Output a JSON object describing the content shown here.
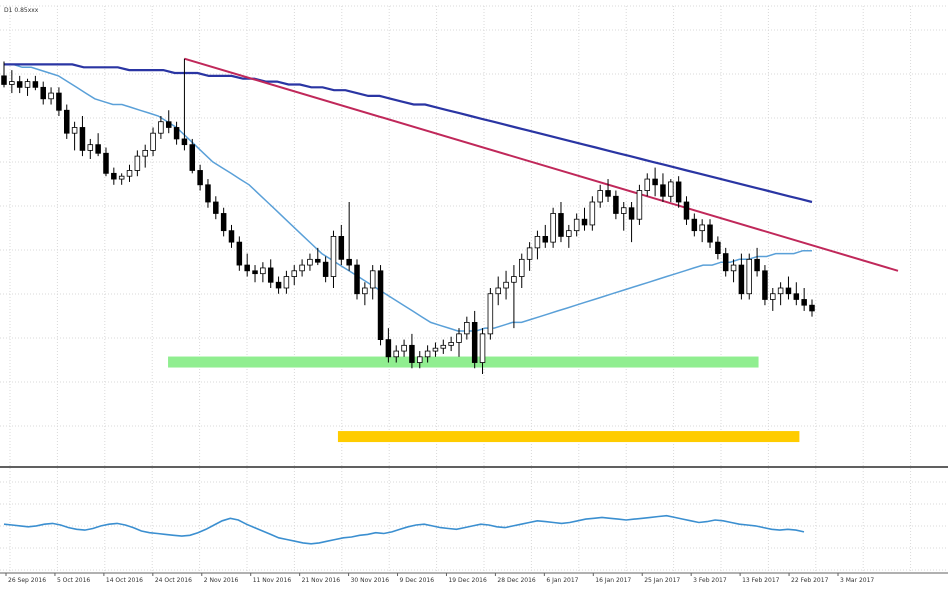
{
  "chart_data": {
    "type": "candlestick",
    "symbol_label": "D1 0.85xxx",
    "grid": true,
    "timeframe": "daily",
    "x_tick_labels": [
      "26 Sep 2016",
      "5 Oct 2016",
      "14 Oct 2016",
      "24 Oct 2016",
      "2 Nov 2016",
      "11 Nov 2016",
      "21 Nov 2016",
      "30 Nov 2016",
      "9 Dec 2016",
      "19 Dec 2016",
      "28 Dec 2016",
      "6 Jan 2017",
      "16 Jan 2017",
      "25 Jan 2017",
      "3 Feb 2017",
      "13 Feb 2017",
      "22 Feb 2017",
      "3 Mar 2017"
    ],
    "price_ylim": [
      0,
      100
    ],
    "oscillator_ylim": [
      0,
      100
    ],
    "candles": [
      {
        "o": 64,
        "h": 69,
        "l": 60,
        "c": 61
      },
      {
        "o": 61,
        "h": 66,
        "l": 58,
        "c": 62
      },
      {
        "o": 62,
        "h": 64,
        "l": 58,
        "c": 60
      },
      {
        "o": 60,
        "h": 63,
        "l": 57,
        "c": 62
      },
      {
        "o": 62,
        "h": 64,
        "l": 59,
        "c": 60
      },
      {
        "o": 60,
        "h": 62,
        "l": 54,
        "c": 56
      },
      {
        "o": 56,
        "h": 60,
        "l": 54,
        "c": 58
      },
      {
        "o": 58,
        "h": 60,
        "l": 50,
        "c": 52
      },
      {
        "o": 52,
        "h": 54,
        "l": 42,
        "c": 44
      },
      {
        "o": 44,
        "h": 48,
        "l": 38,
        "c": 46
      },
      {
        "o": 46,
        "h": 50,
        "l": 36,
        "c": 38
      },
      {
        "o": 38,
        "h": 42,
        "l": 35,
        "c": 40
      },
      {
        "o": 40,
        "h": 44,
        "l": 36,
        "c": 37
      },
      {
        "o": 37,
        "h": 39,
        "l": 29,
        "c": 30
      },
      {
        "o": 30,
        "h": 32,
        "l": 26,
        "c": 28
      },
      {
        "o": 28,
        "h": 30,
        "l": 26,
        "c": 29
      },
      {
        "o": 29,
        "h": 33,
        "l": 27,
        "c": 31
      },
      {
        "o": 31,
        "h": 38,
        "l": 29,
        "c": 36
      },
      {
        "o": 36,
        "h": 40,
        "l": 32,
        "c": 38
      },
      {
        "o": 38,
        "h": 46,
        "l": 36,
        "c": 44
      },
      {
        "o": 44,
        "h": 50,
        "l": 42,
        "c": 48
      },
      {
        "o": 48,
        "h": 52,
        "l": 44,
        "c": 46
      },
      {
        "o": 46,
        "h": 48,
        "l": 40,
        "c": 42
      },
      {
        "o": 42,
        "h": 70,
        "l": 38,
        "c": 40
      },
      {
        "o": 40,
        "h": 42,
        "l": 30,
        "c": 31
      },
      {
        "o": 31,
        "h": 33,
        "l": 24,
        "c": 26
      },
      {
        "o": 26,
        "h": 28,
        "l": 18,
        "c": 20
      },
      {
        "o": 20,
        "h": 22,
        "l": 14,
        "c": 16
      },
      {
        "o": 16,
        "h": 18,
        "l": 8,
        "c": 10
      },
      {
        "o": 10,
        "h": 12,
        "l": 4,
        "c": 6
      },
      {
        "o": 6,
        "h": 8,
        "l": -4,
        "c": -2
      },
      {
        "o": -2,
        "h": 2,
        "l": -6,
        "c": -4
      },
      {
        "o": -4,
        "h": -2,
        "l": -8,
        "c": -5
      },
      {
        "o": -5,
        "h": -1,
        "l": -8,
        "c": -3
      },
      {
        "o": -3,
        "h": 0,
        "l": -10,
        "c": -8
      },
      {
        "o": -8,
        "h": -6,
        "l": -12,
        "c": -10
      },
      {
        "o": -10,
        "h": -4,
        "l": -12,
        "c": -6
      },
      {
        "o": -6,
        "h": -2,
        "l": -9,
        "c": -4
      },
      {
        "o": -4,
        "h": 0,
        "l": -6,
        "c": -2
      },
      {
        "o": -2,
        "h": 2,
        "l": -4,
        "c": 0
      },
      {
        "o": 0,
        "h": 4,
        "l": -2,
        "c": -1
      },
      {
        "o": -1,
        "h": 1,
        "l": -8,
        "c": -6
      },
      {
        "o": -6,
        "h": 10,
        "l": -10,
        "c": 8
      },
      {
        "o": 8,
        "h": 12,
        "l": -2,
        "c": 0
      },
      {
        "o": 0,
        "h": 20,
        "l": -4,
        "c": -2
      },
      {
        "o": -2,
        "h": 0,
        "l": -14,
        "c": -12
      },
      {
        "o": -12,
        "h": -8,
        "l": -16,
        "c": -10
      },
      {
        "o": -10,
        "h": -2,
        "l": -14,
        "c": -4
      },
      {
        "o": -4,
        "h": -2,
        "l": -30,
        "c": -28
      },
      {
        "o": -28,
        "h": -24,
        "l": -36,
        "c": -34
      },
      {
        "o": -34,
        "h": -30,
        "l": -36,
        "c": -32
      },
      {
        "o": -32,
        "h": -28,
        "l": -34,
        "c": -30
      },
      {
        "o": -30,
        "h": -26,
        "l": -38,
        "c": -36
      },
      {
        "o": -36,
        "h": -32,
        "l": -38,
        "c": -34
      },
      {
        "o": -34,
        "h": -30,
        "l": -36,
        "c": -32
      },
      {
        "o": -32,
        "h": -29,
        "l": -34,
        "c": -31
      },
      {
        "o": -31,
        "h": -28,
        "l": -33,
        "c": -30
      },
      {
        "o": -30,
        "h": -27,
        "l": -32,
        "c": -29
      },
      {
        "o": -29,
        "h": -24,
        "l": -34,
        "c": -26
      },
      {
        "o": -26,
        "h": -20,
        "l": -28,
        "c": -22
      },
      {
        "o": -22,
        "h": -18,
        "l": -38,
        "c": -36
      },
      {
        "o": -36,
        "h": -24,
        "l": -40,
        "c": -26
      },
      {
        "o": -26,
        "h": -10,
        "l": -28,
        "c": -12
      },
      {
        "o": -12,
        "h": -6,
        "l": -16,
        "c": -10
      },
      {
        "o": -10,
        "h": -4,
        "l": -14,
        "c": -8
      },
      {
        "o": -8,
        "h": -2,
        "l": -24,
        "c": -6
      },
      {
        "o": -6,
        "h": 2,
        "l": -10,
        "c": 0
      },
      {
        "o": 0,
        "h": 6,
        "l": -4,
        "c": 4
      },
      {
        "o": 4,
        "h": 10,
        "l": 0,
        "c": 8
      },
      {
        "o": 8,
        "h": 12,
        "l": 4,
        "c": 6
      },
      {
        "o": 6,
        "h": 18,
        "l": 4,
        "c": 16
      },
      {
        "o": 16,
        "h": 20,
        "l": 6,
        "c": 8
      },
      {
        "o": 8,
        "h": 12,
        "l": 4,
        "c": 10
      },
      {
        "o": 10,
        "h": 16,
        "l": 8,
        "c": 14
      },
      {
        "o": 14,
        "h": 18,
        "l": 10,
        "c": 12
      },
      {
        "o": 12,
        "h": 22,
        "l": 10,
        "c": 20
      },
      {
        "o": 20,
        "h": 26,
        "l": 18,
        "c": 24
      },
      {
        "o": 24,
        "h": 28,
        "l": 20,
        "c": 22
      },
      {
        "o": 22,
        "h": 24,
        "l": 14,
        "c": 16
      },
      {
        "o": 16,
        "h": 20,
        "l": 10,
        "c": 18
      },
      {
        "o": 18,
        "h": 20,
        "l": 6,
        "c": 14
      },
      {
        "o": 14,
        "h": 26,
        "l": 12,
        "c": 24
      },
      {
        "o": 24,
        "h": 30,
        "l": 22,
        "c": 28
      },
      {
        "o": 28,
        "h": 32,
        "l": 22,
        "c": 26
      },
      {
        "o": 26,
        "h": 30,
        "l": 20,
        "c": 22
      },
      {
        "o": 22,
        "h": 28,
        "l": 20,
        "c": 27
      },
      {
        "o": 27,
        "h": 29,
        "l": 18,
        "c": 20
      },
      {
        "o": 20,
        "h": 22,
        "l": 12,
        "c": 14
      },
      {
        "o": 14,
        "h": 16,
        "l": 8,
        "c": 10
      },
      {
        "o": 10,
        "h": 14,
        "l": 6,
        "c": 12
      },
      {
        "o": 12,
        "h": 14,
        "l": 4,
        "c": 6
      },
      {
        "o": 6,
        "h": 8,
        "l": 0,
        "c": 2
      },
      {
        "o": 2,
        "h": 4,
        "l": -6,
        "c": -4
      },
      {
        "o": -4,
        "h": 0,
        "l": -8,
        "c": -2
      },
      {
        "o": -2,
        "h": 2,
        "l": -14,
        "c": -12
      },
      {
        "o": -12,
        "h": 2,
        "l": -14,
        "c": 0
      },
      {
        "o": 0,
        "h": 4,
        "l": -6,
        "c": -4
      },
      {
        "o": -4,
        "h": -2,
        "l": -16,
        "c": -14
      },
      {
        "o": -14,
        "h": -10,
        "l": -18,
        "c": -12
      },
      {
        "o": -12,
        "h": -8,
        "l": -16,
        "c": -10
      },
      {
        "o": -10,
        "h": -6,
        "l": -14,
        "c": -12
      },
      {
        "o": -12,
        "h": -8,
        "l": -16,
        "c": -14
      },
      {
        "o": -14,
        "h": -10,
        "l": -18,
        "c": -16
      },
      {
        "o": -16,
        "h": -14,
        "l": -20,
        "c": -18
      }
    ],
    "moving_average_fast": [
      68,
      68,
      67,
      67,
      66,
      65,
      64,
      62,
      60,
      58,
      56,
      55,
      54,
      54,
      53,
      52,
      51,
      50,
      48,
      46,
      43,
      40,
      37,
      34,
      32,
      30,
      28,
      26,
      23,
      20,
      17,
      14,
      11,
      8,
      5,
      2,
      0,
      -2,
      -4,
      -6,
      -8,
      -10,
      -12,
      -14,
      -16,
      -18,
      -20,
      -22,
      -23,
      -24,
      -25,
      -25,
      -25,
      -24,
      -24,
      -23,
      -22,
      -22,
      -21,
      -20,
      -19,
      -18,
      -17,
      -16,
      -15,
      -14,
      -13,
      -12,
      -11,
      -10,
      -9,
      -8,
      -7,
      -6,
      -5,
      -4,
      -3,
      -2,
      -2,
      -1,
      -1,
      0,
      0,
      1,
      1,
      2,
      2,
      2,
      3,
      3
    ],
    "moving_average_slow": [
      68,
      68,
      68,
      68,
      68,
      68,
      68,
      67,
      67,
      67,
      67,
      66,
      66,
      66,
      66,
      65,
      65,
      65,
      64,
      64,
      64,
      63,
      63,
      62,
      62,
      61,
      61,
      60,
      60,
      59,
      59,
      58,
      57,
      57,
      56,
      55,
      54,
      54,
      53,
      52,
      51,
      50,
      49,
      48,
      47,
      46,
      45,
      44,
      43,
      42,
      41,
      40,
      39,
      38,
      37,
      36,
      35,
      34,
      33,
      32,
      31,
      30,
      29,
      28,
      27,
      26,
      25,
      24,
      23,
      22,
      21,
      20
    ],
    "trendline": {
      "from_index": 23,
      "from_value": 70,
      "to_index": 103,
      "to_value": -4
    },
    "support_zone_green": {
      "start_index": 19,
      "end_index": 93,
      "value": -36
    },
    "support_zone_yellow": {
      "start_index": 39,
      "end_index": 94,
      "value": -62
    },
    "oscillator": [
      48,
      47,
      46,
      45,
      46,
      48,
      49,
      47,
      44,
      42,
      41,
      43,
      46,
      48,
      49,
      47,
      44,
      40,
      38,
      37,
      36,
      35,
      34,
      35,
      38,
      42,
      47,
      52,
      55,
      53,
      48,
      44,
      40,
      36,
      32,
      30,
      28,
      26,
      25,
      26,
      28,
      30,
      32,
      33,
      35,
      36,
      38,
      37,
      39,
      42,
      45,
      47,
      48,
      46,
      44,
      43,
      42,
      44,
      46,
      48,
      47,
      45,
      44,
      46,
      48,
      50,
      52,
      51,
      50,
      49,
      50,
      52,
      54,
      55,
      56,
      55,
      54,
      53,
      54,
      55,
      56,
      57,
      58,
      56,
      54,
      52,
      50,
      51,
      53,
      52,
      50,
      48,
      47,
      46,
      44,
      42,
      41,
      42,
      41,
      39
    ]
  },
  "colors": {
    "bullish_candle": "#ffffff",
    "bearish_candle": "#000000",
    "candle_outline": "#000000",
    "ma_fast": "#5aa0d8",
    "ma_slow": "#2a35a3",
    "trendline": "#c0285a",
    "support_green": "#90ee90",
    "support_yellow": "#ffcc00",
    "oscillator_line": "#3b8fd0",
    "separator": "#606060",
    "grid": "#d9d9d9"
  }
}
